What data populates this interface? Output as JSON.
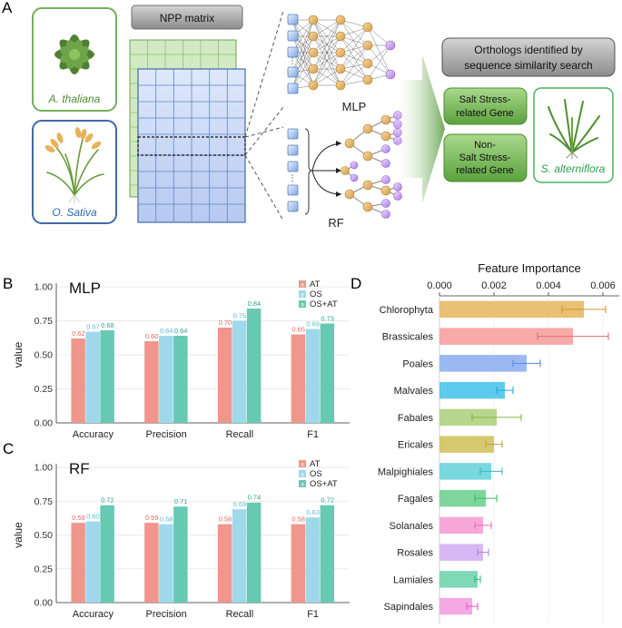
{
  "panels": {
    "a": {
      "letter": "A",
      "plant1_name": "A. thaliana",
      "plant2_name": "O. Sativa",
      "matrix_title": "NPP matrix",
      "mlp_label": "MLP",
      "rf_label": "RF",
      "dots_symbol": "⋮",
      "orthologs_line1": "Orthologs identified by",
      "orthologs_line2": "sequence similarity search",
      "salt_gene_line1": "Salt Stress-",
      "salt_gene_line2": "related Gene",
      "nonsalt_line1": "Non-",
      "nonsalt_line2": "Salt Stress-",
      "nonsalt_line3": "related Gene",
      "target_name": "S. alterniflora"
    },
    "b": {
      "letter": "B"
    },
    "c": {
      "letter": "C"
    },
    "d": {
      "letter": "D"
    }
  },
  "colors": {
    "AT": "#f0968c",
    "OS": "#9fd8ea",
    "OSAT": "#67c9b2",
    "AT_text": "#e06a5c",
    "OS_text": "#5bbbd6",
    "OSAT_text": "#2ba58a",
    "matrix_blue": "#c7d8f4",
    "matrix_green": "#cfe6c2",
    "box_green": "#7fb96a",
    "box_blue": "#3f6aa8"
  },
  "chart_data": [
    {
      "id": "mlp",
      "type": "bar",
      "title": "MLP",
      "ylabel": "value",
      "xlabel": "",
      "ylim": [
        0,
        1.0
      ],
      "yticks": [
        "0.00",
        "0.25",
        "0.50",
        "0.75",
        "1.00"
      ],
      "categories": [
        "Accuracy",
        "Precision",
        "Recall",
        "F1"
      ],
      "legend_position": "top-right",
      "series": [
        {
          "name": "AT",
          "values": [
            0.62,
            0.6,
            0.7,
            0.65
          ],
          "labels": [
            "0.62",
            "0.60",
            "0.70",
            "0.65"
          ]
        },
        {
          "name": "OS",
          "values": [
            0.67,
            0.64,
            0.75,
            0.69
          ],
          "labels": [
            "0.67",
            "0.64",
            "0.75",
            "0.69"
          ]
        },
        {
          "name": "OS+AT",
          "values": [
            0.68,
            0.64,
            0.84,
            0.73
          ],
          "labels": [
            "0.68",
            "0.64",
            "0.84",
            "0.73"
          ]
        }
      ]
    },
    {
      "id": "rf",
      "type": "bar",
      "title": "RF",
      "ylabel": "value",
      "xlabel": "",
      "ylim": [
        0,
        1.0
      ],
      "yticks": [
        "0.00",
        "0.25",
        "0.50",
        "0.75",
        "1.00"
      ],
      "categories": [
        "Accuracy",
        "Precision",
        "Recall",
        "F1"
      ],
      "legend_position": "top-right",
      "series": [
        {
          "name": "AT",
          "values": [
            0.59,
            0.59,
            0.58,
            0.58
          ],
          "labels": [
            "0.59",
            "0.59",
            "0.58",
            "0.58"
          ]
        },
        {
          "name": "OS",
          "values": [
            0.6,
            0.58,
            0.69,
            0.63
          ],
          "labels": [
            "0.60",
            "0.58",
            "0.69",
            "0.63"
          ]
        },
        {
          "name": "OS+AT",
          "values": [
            0.72,
            0.71,
            0.74,
            0.72
          ],
          "labels": [
            "0.72",
            "0.71",
            "0.74",
            "0.72"
          ]
        }
      ]
    },
    {
      "id": "importance",
      "type": "bar",
      "orientation": "horizontal",
      "title": "Feature Importance",
      "xlim": [
        0,
        0.0066
      ],
      "xticks": [
        0,
        0.002,
        0.004,
        0.006
      ],
      "xtick_labels": [
        "0.000",
        "0.002",
        "0.004",
        "0.006"
      ],
      "categories": [
        "Chlorophyta",
        "Brassicales",
        "Poales",
        "Malvales",
        "Fabales",
        "Ericales",
        "Malpighiales",
        "Fagales",
        "Solanales",
        "Rosales",
        "Lamiales",
        "Sapindales"
      ],
      "values": [
        0.0053,
        0.0049,
        0.0032,
        0.0024,
        0.0021,
        0.002,
        0.0019,
        0.0017,
        0.0016,
        0.0016,
        0.0014,
        0.0012
      ],
      "errors": [
        0.0008,
        0.0013,
        0.0005,
        0.0003,
        0.0009,
        0.0003,
        0.0004,
        0.0004,
        0.0003,
        0.0002,
        0.0001,
        0.0002
      ],
      "bar_colors": [
        "#e8c172",
        "#f7aaa8",
        "#9ab8f2",
        "#5dcbed",
        "#b7d68d",
        "#d6c86e",
        "#79d8dd",
        "#7ed69d",
        "#f7a8d8",
        "#d7b8f2",
        "#7fd8b6",
        "#f5a8e3"
      ],
      "error_colors": [
        "#d9932b",
        "#e06f6b",
        "#5a85e0",
        "#23a6d6",
        "#8ab044",
        "#b8a63a",
        "#35b8c3",
        "#3cb863",
        "#ea6cb8",
        "#b483e4",
        "#36b884",
        "#e55fcc"
      ]
    }
  ]
}
